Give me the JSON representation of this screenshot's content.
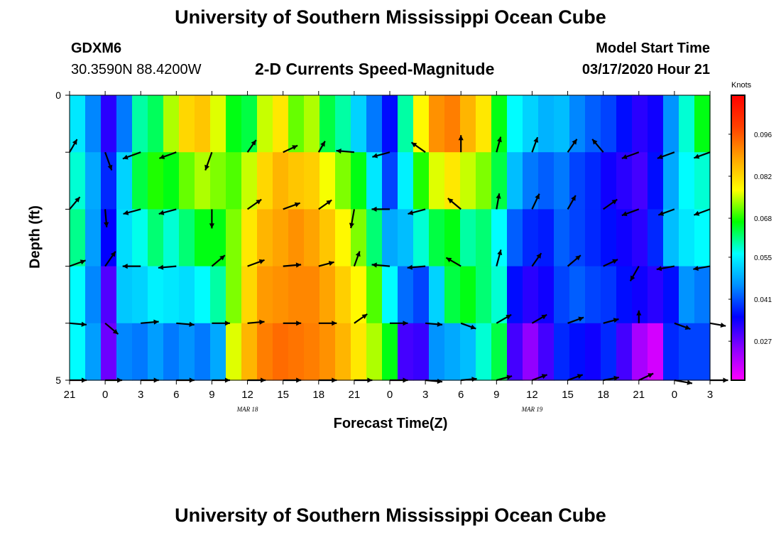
{
  "header": {
    "top_title": "University of Southern Mississippi Ocean Cube",
    "bottom_title": "University of Southern Mississippi Ocean Cube",
    "station_id": "GDXM6",
    "station_coords": "30.3590N 88.4200W",
    "model_start_label": "Model Start Time",
    "model_start_value": "03/17/2020 Hour 21"
  },
  "chart_data": {
    "type": "heatmap",
    "title": "2-D Currents Speed-Magnitude",
    "xlabel": "Forecast Time(Z)",
    "ylabel": "Depth (ft)",
    "x_ticks": [
      "21",
      "0",
      "3",
      "6",
      "9",
      "12",
      "15",
      "18",
      "21",
      "0",
      "3",
      "6",
      "9",
      "12",
      "15",
      "18",
      "21",
      "0",
      "3"
    ],
    "x_range_hours": [
      0,
      54
    ],
    "y_ticks": [
      "0",
      "5"
    ],
    "y_range_ft": [
      0,
      5
    ],
    "date_labels": [
      {
        "text": "MAR 18",
        "hour": 15
      },
      {
        "text": "MAR 19",
        "hour": 39
      }
    ],
    "colorbar": {
      "unit": "Knots",
      "tick_labels": [
        "0.096",
        "0.082",
        "0.068",
        "0.055",
        "0.041",
        "0.027"
      ],
      "tick_values": [
        0.096,
        0.082,
        0.068,
        0.055,
        0.041,
        0.027
      ],
      "range": [
        0.014,
        0.109
      ],
      "stops": [
        "#ff00ff",
        "#8c00ff",
        "#0000ff",
        "#0090ff",
        "#00ffff",
        "#00ff00",
        "#ffff00",
        "#ffa500",
        "#ff4000",
        "#ff0000"
      ]
    },
    "speed_columns_knots": [
      [
        0.054,
        0.058,
        0.061,
        0.056,
        0.056
      ],
      [
        0.045,
        0.048,
        0.047,
        0.045,
        0.047
      ],
      [
        0.032,
        0.038,
        0.035,
        0.029,
        0.027
      ],
      [
        0.044,
        0.052,
        0.053,
        0.051,
        0.045
      ],
      [
        0.06,
        0.064,
        0.057,
        0.052,
        0.044
      ],
      [
        0.063,
        0.068,
        0.062,
        0.055,
        0.047
      ],
      [
        0.074,
        0.066,
        0.058,
        0.054,
        0.044
      ],
      [
        0.082,
        0.071,
        0.062,
        0.053,
        0.046
      ],
      [
        0.084,
        0.074,
        0.066,
        0.056,
        0.044
      ],
      [
        0.076,
        0.072,
        0.066,
        0.06,
        0.048
      ],
      [
        0.066,
        0.07,
        0.072,
        0.072,
        0.076
      ],
      [
        0.064,
        0.075,
        0.08,
        0.082,
        0.086
      ],
      [
        0.075,
        0.082,
        0.086,
        0.089,
        0.092
      ],
      [
        0.08,
        0.086,
        0.088,
        0.09,
        0.094
      ],
      [
        0.071,
        0.084,
        0.09,
        0.091,
        0.093
      ],
      [
        0.074,
        0.083,
        0.088,
        0.091,
        0.092
      ],
      [
        0.064,
        0.077,
        0.084,
        0.088,
        0.09
      ],
      [
        0.06,
        0.072,
        0.078,
        0.083,
        0.086
      ],
      [
        0.052,
        0.066,
        0.072,
        0.078,
        0.08
      ],
      [
        0.044,
        0.054,
        0.062,
        0.07,
        0.074
      ],
      [
        0.036,
        0.04,
        0.048,
        0.056,
        0.066
      ],
      [
        0.06,
        0.055,
        0.05,
        0.043,
        0.03
      ],
      [
        0.078,
        0.068,
        0.058,
        0.04,
        0.031
      ],
      [
        0.09,
        0.076,
        0.064,
        0.052,
        0.046
      ],
      [
        0.092,
        0.08,
        0.066,
        0.064,
        0.048
      ],
      [
        0.086,
        0.075,
        0.06,
        0.066,
        0.05
      ],
      [
        0.08,
        0.072,
        0.062,
        0.062,
        0.058
      ],
      [
        0.066,
        0.064,
        0.056,
        0.058,
        0.064
      ],
      [
        0.056,
        0.05,
        0.042,
        0.036,
        0.03
      ],
      [
        0.052,
        0.044,
        0.038,
        0.032,
        0.024
      ],
      [
        0.049,
        0.042,
        0.037,
        0.034,
        0.03
      ],
      [
        0.05,
        0.044,
        0.042,
        0.04,
        0.038
      ],
      [
        0.045,
        0.04,
        0.04,
        0.042,
        0.036
      ],
      [
        0.042,
        0.038,
        0.038,
        0.04,
        0.034
      ],
      [
        0.04,
        0.034,
        0.036,
        0.039,
        0.038
      ],
      [
        0.036,
        0.032,
        0.034,
        0.036,
        0.03
      ],
      [
        0.032,
        0.03,
        0.032,
        0.034,
        0.022
      ],
      [
        0.034,
        0.036,
        0.038,
        0.032,
        0.018
      ],
      [
        0.046,
        0.048,
        0.05,
        0.036,
        0.038
      ],
      [
        0.058,
        0.056,
        0.054,
        0.046,
        0.04
      ],
      [
        0.066,
        0.058,
        0.056,
        0.044,
        0.04
      ]
    ],
    "vector_rows_depth_ft": [
      1,
      2,
      3,
      4,
      5
    ],
    "vector_columns_hour": [
      0.0,
      3.0,
      6.0,
      9.0,
      12.0,
      15.0,
      18.0,
      21.0,
      24.0,
      27.0,
      30.0,
      33.0,
      36.0,
      39.0,
      42.0,
      45.0,
      48.0,
      51.0,
      54.0
    ],
    "vectors": [
      [
        [
          0.7,
          60
        ],
        [
          0.9,
          -70
        ],
        [
          0.9,
          -160
        ],
        [
          0.85,
          -160
        ],
        [
          0.9,
          -110
        ],
        [
          0.7,
          55
        ],
        [
          0.75,
          25
        ],
        [
          0.6,
          60
        ],
        [
          0.85,
          175
        ],
        [
          0.85,
          -165
        ],
        [
          0.8,
          145
        ],
        [
          0.8,
          90
        ],
        [
          0.75,
          75
        ],
        [
          0.75,
          70
        ],
        [
          0.75,
          55
        ],
        [
          0.8,
          130
        ],
        [
          0.85,
          -160
        ],
        [
          0.85,
          -160
        ],
        [
          0.8,
          -160
        ]
      ],
      [
        [
          0.75,
          50
        ],
        [
          0.85,
          -85
        ],
        [
          0.85,
          -165
        ],
        [
          0.85,
          -165
        ],
        [
          0.9,
          -90
        ],
        [
          0.8,
          35
        ],
        [
          0.85,
          20
        ],
        [
          0.75,
          35
        ],
        [
          0.9,
          -100
        ],
        [
          0.85,
          180
        ],
        [
          0.85,
          -165
        ],
        [
          0.8,
          140
        ],
        [
          0.75,
          80
        ],
        [
          0.8,
          65
        ],
        [
          0.75,
          60
        ],
        [
          0.8,
          35
        ],
        [
          0.85,
          -160
        ],
        [
          0.8,
          -160
        ],
        [
          0.8,
          -160
        ]
      ],
      [
        [
          0.8,
          20
        ],
        [
          0.85,
          55
        ],
        [
          0.85,
          -180
        ],
        [
          0.85,
          -175
        ],
        [
          0.8,
          40
        ],
        [
          0.85,
          20
        ],
        [
          0.85,
          5
        ],
        [
          0.75,
          15
        ],
        [
          0.75,
          70
        ],
        [
          0.85,
          175
        ],
        [
          0.85,
          -175
        ],
        [
          0.8,
          150
        ],
        [
          0.8,
          75
        ],
        [
          0.75,
          55
        ],
        [
          0.8,
          40
        ],
        [
          0.75,
          25
        ],
        [
          0.8,
          -120
        ],
        [
          0.85,
          -170
        ],
        [
          0.8,
          -170
        ]
      ],
      [
        [
          0.8,
          -5
        ],
        [
          0.8,
          -40
        ],
        [
          0.85,
          5
        ],
        [
          0.85,
          -5
        ],
        [
          0.85,
          0
        ],
        [
          0.8,
          5
        ],
        [
          0.85,
          0
        ],
        [
          0.85,
          0
        ],
        [
          0.75,
          35
        ],
        [
          0.85,
          0
        ],
        [
          0.8,
          -5
        ],
        [
          0.75,
          -20
        ],
        [
          0.8,
          30
        ],
        [
          0.8,
          30
        ],
        [
          0.8,
          20
        ],
        [
          0.75,
          15
        ],
        [
          0.6,
          90
        ],
        [
          0.8,
          -20
        ],
        [
          0.75,
          -10
        ]
      ],
      [
        [
          0.8,
          0
        ],
        [
          0.8,
          0
        ],
        [
          0.85,
          0
        ],
        [
          0.85,
          0
        ],
        [
          0.85,
          0
        ],
        [
          0.85,
          0
        ],
        [
          0.85,
          0
        ],
        [
          0.85,
          0
        ],
        [
          0.85,
          0
        ],
        [
          0.85,
          0
        ],
        [
          0.8,
          -5
        ],
        [
          0.75,
          5
        ],
        [
          0.75,
          15
        ],
        [
          0.75,
          20
        ],
        [
          0.75,
          20
        ],
        [
          0.75,
          10
        ],
        [
          0.75,
          25
        ],
        [
          0.85,
          -10
        ],
        [
          0.85,
          0
        ]
      ]
    ]
  }
}
